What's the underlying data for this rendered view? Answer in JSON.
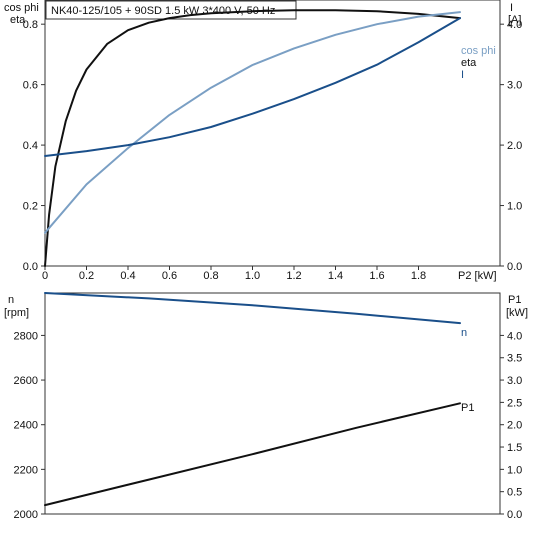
{
  "title": "NK40-125/105 + 90SD   1.5 kW   3*400 V, 50 Hz",
  "colors": {
    "eta": "#111111",
    "cos_phi": "#7a9fc4",
    "current": "#1a4f8a",
    "speed": "#1a4f8a",
    "p1": "#111111",
    "axes": "#333333"
  },
  "chart_data": [
    {
      "type": "line",
      "x_axis": {
        "label": "P2 [kW]",
        "range": [
          0,
          2.0
        ],
        "ticks": [
          0,
          0.2,
          0.4,
          0.6,
          0.8,
          1.0,
          1.2,
          1.4,
          1.6,
          1.8
        ],
        "tick_labels": [
          "0",
          "0.2",
          "0.4",
          "0.6",
          "0.8",
          "1.0",
          "1.2",
          "1.4",
          "1.6",
          "1.8"
        ]
      },
      "left_axis": {
        "label_lines": [
          "cos phi",
          "eta"
        ],
        "range": [
          0,
          0.88
        ],
        "ticks": [
          0,
          0.2,
          0.4,
          0.6,
          0.8
        ],
        "tick_labels": [
          "0.0",
          "0.2",
          "0.4",
          "0.6",
          "0.8"
        ]
      },
      "right_axis": {
        "label_lines": [
          "I",
          "[A]"
        ],
        "range": [
          0,
          4.4
        ],
        "ticks": [
          0,
          1,
          2,
          3,
          4
        ],
        "tick_labels": [
          "0.0",
          "1.0",
          "2.0",
          "3.0",
          "4.0"
        ]
      },
      "series": [
        {
          "name": "eta",
          "axis": "left",
          "x": [
            0,
            0.02,
            0.05,
            0.1,
            0.15,
            0.2,
            0.3,
            0.4,
            0.5,
            0.6,
            0.7,
            0.8,
            1.0,
            1.2,
            1.4,
            1.6,
            1.8,
            2.0
          ],
          "y": [
            0,
            0.17,
            0.33,
            0.48,
            0.58,
            0.65,
            0.735,
            0.78,
            0.805,
            0.82,
            0.83,
            0.836,
            0.843,
            0.846,
            0.846,
            0.843,
            0.834,
            0.82
          ]
        },
        {
          "name": "cos phi",
          "axis": "left",
          "x": [
            0,
            0.2,
            0.4,
            0.6,
            0.8,
            1.0,
            1.2,
            1.4,
            1.6,
            1.8,
            2.0
          ],
          "y": [
            0.11,
            0.27,
            0.39,
            0.5,
            0.59,
            0.665,
            0.72,
            0.765,
            0.8,
            0.825,
            0.84
          ]
        },
        {
          "name": "I",
          "axis": "right",
          "x": [
            0,
            0.2,
            0.4,
            0.6,
            0.8,
            1.0,
            1.2,
            1.4,
            1.6,
            1.8,
            2.0
          ],
          "y": [
            1.82,
            1.9,
            2.0,
            2.13,
            2.3,
            2.52,
            2.76,
            3.03,
            3.33,
            3.7,
            4.1
          ]
        }
      ]
    },
    {
      "type": "line",
      "x_axis": {
        "range": [
          0,
          2.0
        ]
      },
      "left_axis": {
        "label_lines": [
          "n",
          "[rpm]"
        ],
        "range": [
          2000,
          2990
        ],
        "ticks": [
          2000,
          2200,
          2400,
          2600,
          2800
        ],
        "tick_labels": [
          "2000",
          "2200",
          "2400",
          "2600",
          "2800"
        ]
      },
      "right_axis": {
        "label_lines": [
          "P1",
          "[kW]"
        ],
        "range": [
          0,
          4.95
        ],
        "ticks": [
          0,
          0.5,
          1.0,
          1.5,
          2.0,
          2.5,
          3.0,
          3.5,
          4.0
        ],
        "tick_labels": [
          "0.0",
          "0.5",
          "1.0",
          "1.5",
          "2.0",
          "2.5",
          "3.0",
          "3.5",
          "4.0"
        ]
      },
      "series": [
        {
          "name": "n",
          "axis": "left",
          "x": [
            0,
            0.5,
            1.0,
            1.5,
            2.0
          ],
          "y": [
            2990,
            2966,
            2935,
            2897,
            2855
          ]
        },
        {
          "name": "P1",
          "axis": "right",
          "x": [
            0,
            0.5,
            1.0,
            1.5,
            2.0
          ],
          "y": [
            0.2,
            0.77,
            1.34,
            1.93,
            2.48
          ]
        }
      ]
    }
  ]
}
